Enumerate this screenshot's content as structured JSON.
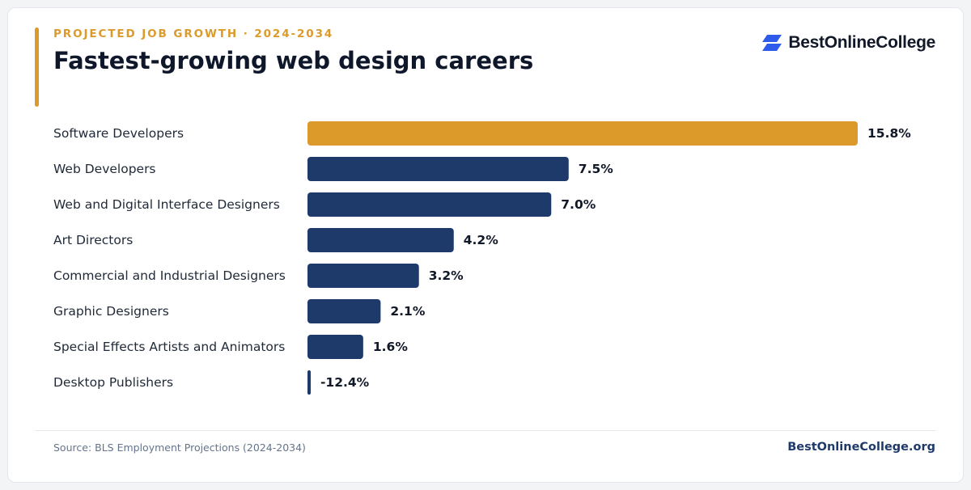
{
  "header": {
    "eyebrow": "PROJECTED JOB GROWTH · 2024-2034",
    "title": "Fastest-growing web design careers"
  },
  "brand": {
    "name": "BestOnlineCollege",
    "icon": "logo-mark-icon",
    "color": "#2f5bea"
  },
  "footer": {
    "source": "Source: BLS Employment Projections (2024-2034)",
    "site": "BestOnlineCollege.org"
  },
  "colors": {
    "highlight": "#dc9a2b",
    "bar": "#1e3a6b"
  },
  "chart_data": {
    "type": "bar",
    "orientation": "horizontal",
    "categories": [
      "Software Developers",
      "Web Developers",
      "Web and Digital Interface Designers",
      "Art Directors",
      "Commercial and Industrial Designers",
      "Graphic Designers",
      "Special Effects Artists and Animators",
      "Desktop Publishers"
    ],
    "values": [
      15.8,
      7.5,
      7.0,
      4.2,
      3.2,
      2.1,
      1.6,
      -12.4
    ],
    "value_labels": [
      "15.8%",
      "7.5%",
      "7.0%",
      "4.2%",
      "3.2%",
      "2.1%",
      "1.6%",
      "-12.4%"
    ],
    "highlight_index": 0,
    "grid": false,
    "legend": "none"
  }
}
